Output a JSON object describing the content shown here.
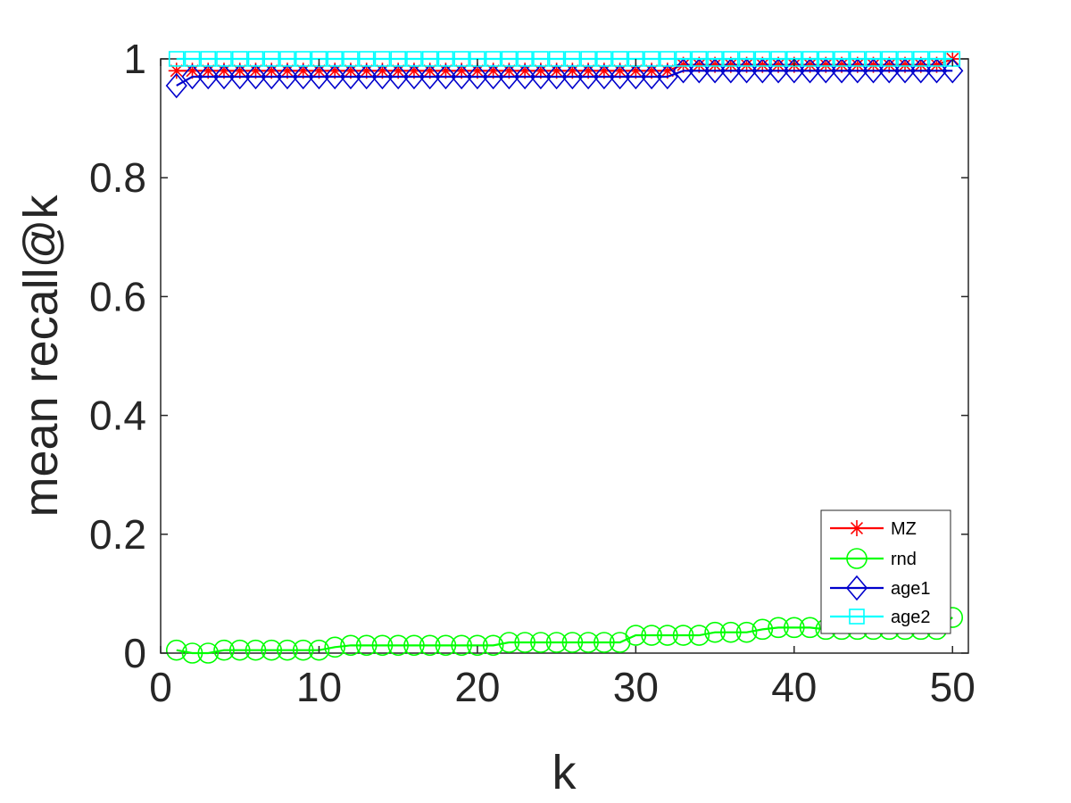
{
  "chart_data": {
    "type": "line",
    "title": "",
    "xlabel": "k",
    "ylabel": "mean recall@k",
    "xlim": [
      0,
      51
    ],
    "ylim": [
      0,
      1
    ],
    "xticks": [
      0,
      10,
      20,
      30,
      40,
      50
    ],
    "xtick_labels": [
      "0",
      "10",
      "20",
      "30",
      "40",
      "50"
    ],
    "yticks": [
      0,
      0.2,
      0.4,
      0.6,
      0.8,
      1
    ],
    "ytick_labels": [
      "0",
      "0.2",
      "0.4",
      "0.6",
      "0.8",
      "1"
    ],
    "grid": false,
    "legend_position": "bottom-right",
    "x": [
      1,
      2,
      3,
      4,
      5,
      6,
      7,
      8,
      9,
      10,
      11,
      12,
      13,
      14,
      15,
      16,
      17,
      18,
      19,
      20,
      21,
      22,
      23,
      24,
      25,
      26,
      27,
      28,
      29,
      30,
      31,
      32,
      33,
      34,
      35,
      36,
      37,
      38,
      39,
      40,
      41,
      42,
      43,
      44,
      45,
      46,
      47,
      48,
      49,
      50
    ],
    "series": [
      {
        "name": "MZ",
        "color": "#ff0000",
        "marker": "asterisk",
        "values": [
          0.98,
          0.98,
          0.98,
          0.98,
          0.98,
          0.98,
          0.98,
          0.98,
          0.98,
          0.98,
          0.98,
          0.98,
          0.98,
          0.98,
          0.98,
          0.98,
          0.98,
          0.98,
          0.98,
          0.98,
          0.98,
          0.98,
          0.98,
          0.98,
          0.98,
          0.98,
          0.98,
          0.98,
          0.98,
          0.98,
          0.98,
          0.98,
          0.99,
          0.99,
          0.99,
          0.99,
          0.99,
          0.99,
          0.99,
          0.99,
          0.99,
          0.99,
          0.99,
          0.99,
          0.99,
          0.99,
          0.99,
          0.99,
          0.99,
          1.0
        ]
      },
      {
        "name": "rnd",
        "color": "#00ff00",
        "marker": "circle",
        "values": [
          0.005,
          0.0,
          0.0,
          0.005,
          0.005,
          0.005,
          0.005,
          0.005,
          0.005,
          0.005,
          0.01,
          0.013,
          0.013,
          0.013,
          0.013,
          0.013,
          0.013,
          0.013,
          0.013,
          0.013,
          0.013,
          0.018,
          0.018,
          0.018,
          0.018,
          0.018,
          0.018,
          0.018,
          0.018,
          0.03,
          0.03,
          0.03,
          0.03,
          0.03,
          0.035,
          0.035,
          0.035,
          0.04,
          0.043,
          0.043,
          0.043,
          0.04,
          0.04,
          0.04,
          0.04,
          0.04,
          0.04,
          0.04,
          0.04,
          0.06
        ]
      },
      {
        "name": "age1",
        "color": "#0000cc",
        "marker": "diamond",
        "values": [
          0.955,
          0.97,
          0.97,
          0.97,
          0.97,
          0.97,
          0.97,
          0.97,
          0.97,
          0.97,
          0.97,
          0.97,
          0.97,
          0.97,
          0.97,
          0.97,
          0.97,
          0.97,
          0.97,
          0.97,
          0.97,
          0.97,
          0.97,
          0.97,
          0.97,
          0.97,
          0.97,
          0.97,
          0.97,
          0.97,
          0.97,
          0.97,
          0.98,
          0.98,
          0.98,
          0.98,
          0.98,
          0.98,
          0.98,
          0.98,
          0.98,
          0.98,
          0.98,
          0.98,
          0.98,
          0.98,
          0.98,
          0.98,
          0.98,
          0.98
        ]
      },
      {
        "name": "age2",
        "color": "#00ffff",
        "marker": "square",
        "values": [
          1,
          1,
          1,
          1,
          1,
          1,
          1,
          1,
          1,
          1,
          1,
          1,
          1,
          1,
          1,
          1,
          1,
          1,
          1,
          1,
          1,
          1,
          1,
          1,
          1,
          1,
          1,
          1,
          1,
          1,
          1,
          1,
          1,
          1,
          1,
          1,
          1,
          1,
          1,
          1,
          1,
          1,
          1,
          1,
          1,
          1,
          1,
          1,
          1,
          1
        ]
      }
    ]
  }
}
